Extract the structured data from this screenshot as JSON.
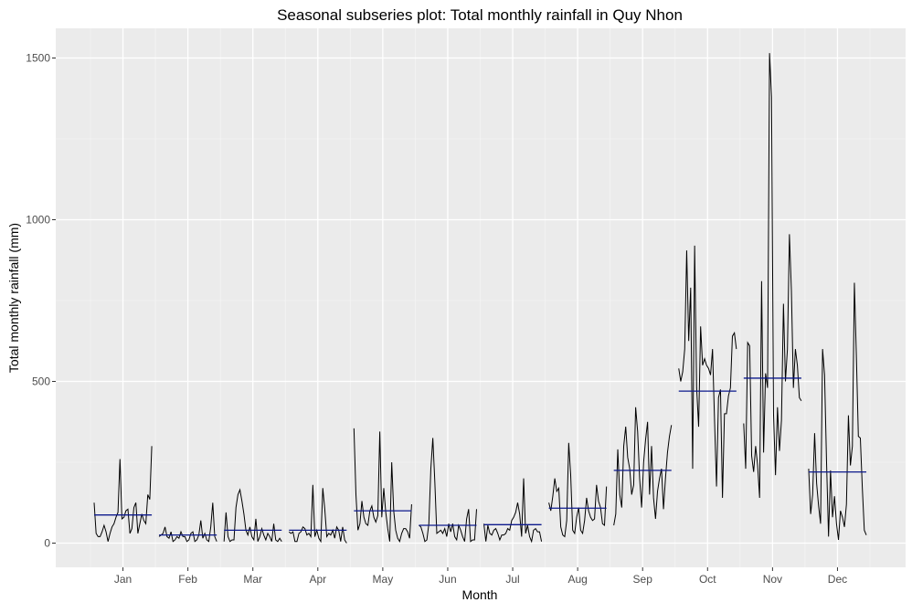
{
  "chart_data": {
    "type": "line",
    "title": "Seasonal subseries plot: Total monthly rainfall in Quy Nhon",
    "xlabel": "Month",
    "ylabel": "Total monthly rainfall (mm)",
    "ylim": [
      -75,
      1590
    ],
    "y_ticks": [
      0,
      500,
      1000,
      1500
    ],
    "grid": true,
    "months": [
      "Jan",
      "Feb",
      "Mar",
      "Apr",
      "May",
      "Jun",
      "Jul",
      "Aug",
      "Sep",
      "Oct",
      "Nov",
      "Dec"
    ],
    "month_means": [
      87,
      25,
      40,
      40,
      100,
      55,
      57,
      108,
      225,
      470,
      510,
      220
    ],
    "series_color": "#000000",
    "mean_color": "#0d1a8c",
    "panel_bg": "#ebebeb",
    "subseries": [
      [
        125,
        30,
        20,
        20,
        35,
        55,
        35,
        5,
        30,
        50,
        60,
        80,
        95,
        260,
        75,
        80,
        100,
        105,
        30,
        45,
        110,
        125,
        30,
        60,
        90,
        70,
        60,
        150,
        135,
        300
      ],
      [
        20,
        25,
        30,
        50,
        20,
        15,
        35,
        5,
        10,
        20,
        15,
        35,
        20,
        20,
        5,
        10,
        30,
        35,
        5,
        10,
        25,
        70,
        15,
        30,
        10,
        5,
        50,
        125,
        20,
        5
      ],
      [
        5,
        95,
        20,
        5,
        10,
        10,
        110,
        150,
        165,
        130,
        90,
        40,
        25,
        50,
        20,
        10,
        75,
        5,
        20,
        45,
        25,
        10,
        30,
        20,
        5,
        60,
        10,
        5,
        15,
        5
      ],
      [
        35,
        30,
        35,
        5,
        5,
        30,
        35,
        50,
        45,
        25,
        30,
        20,
        180,
        20,
        40,
        15,
        5,
        170,
        105,
        20,
        30,
        25,
        40,
        15,
        50,
        40,
        5,
        50,
        10,
        0
      ],
      [
        355,
        150,
        40,
        60,
        130,
        80,
        60,
        55,
        100,
        115,
        80,
        65,
        85,
        345,
        80,
        170,
        95,
        45,
        5,
        250,
        100,
        40,
        15,
        5,
        30,
        45,
        45,
        35,
        15,
        120
      ],
      [
        55,
        50,
        30,
        5,
        10,
        60,
        230,
        325,
        190,
        30,
        35,
        40,
        30,
        45,
        20,
        60,
        35,
        60,
        20,
        10,
        55,
        40,
        20,
        5,
        75,
        105,
        5,
        10,
        10,
        105
      ],
      [
        60,
        5,
        55,
        30,
        25,
        40,
        45,
        30,
        10,
        25,
        25,
        30,
        45,
        40,
        70,
        80,
        95,
        125,
        90,
        20,
        200,
        30,
        55,
        20,
        5,
        40,
        45,
        35,
        35,
        5
      ],
      [
        125,
        100,
        145,
        200,
        160,
        170,
        50,
        25,
        20,
        70,
        310,
        210,
        40,
        30,
        80,
        110,
        40,
        30,
        70,
        140,
        100,
        80,
        70,
        75,
        180,
        130,
        110,
        60,
        55,
        175
      ],
      [
        55,
        90,
        290,
        150,
        110,
        300,
        360,
        265,
        230,
        150,
        180,
        420,
        345,
        200,
        110,
        250,
        320,
        375,
        150,
        300,
        140,
        75,
        160,
        200,
        230,
        105,
        200,
        280,
        330,
        365
      ],
      [
        540,
        500,
        530,
        600,
        905,
        625,
        790,
        230,
        920,
        480,
        360,
        670,
        550,
        570,
        550,
        540,
        520,
        600,
        380,
        175,
        450,
        475,
        140,
        400,
        400,
        455,
        480,
        640,
        650,
        600
      ],
      [
        370,
        230,
        620,
        610,
        270,
        220,
        300,
        240,
        140,
        810,
        280,
        525,
        480,
        1515,
        1380,
        400,
        210,
        420,
        285,
        380,
        740,
        500,
        600,
        955,
        780,
        480,
        600,
        550,
        450,
        440
      ],
      [
        230,
        90,
        150,
        340,
        185,
        115,
        60,
        600,
        520,
        250,
        20,
        225,
        80,
        145,
        60,
        10,
        100,
        80,
        50,
        120,
        395,
        240,
        300,
        805,
        580,
        330,
        325,
        170,
        40,
        25
      ]
    ]
  }
}
